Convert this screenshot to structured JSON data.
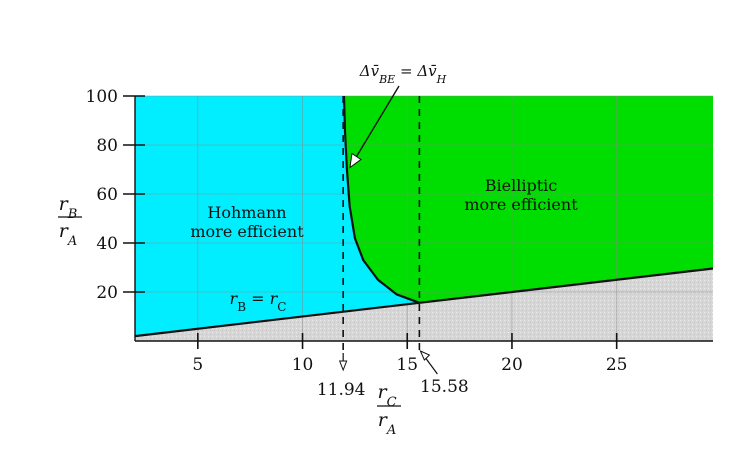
{
  "chart_data": {
    "type": "area",
    "title": "",
    "xlim": [
      2,
      29.6
    ],
    "ylim": [
      0,
      100
    ],
    "x_ticks": [
      5,
      10,
      15,
      20,
      25
    ],
    "y_ticks": [
      20,
      40,
      60,
      80,
      100
    ],
    "xlabel": {
      "num": "r",
      "num_sub": "C",
      "den": "r",
      "den_sub": "A"
    },
    "ylabel": {
      "num": "r",
      "num_sub": "B",
      "den": "r",
      "den_sub": "A"
    },
    "regions": [
      {
        "name_lines": [
          "Hohmann",
          "more efficient"
        ],
        "color": "#00eeff"
      },
      {
        "name_lines": [
          "Bielliptic",
          "more efficient"
        ],
        "color": "#00dd00"
      },
      {
        "name_lines": [],
        "color": "#d8d8d8"
      }
    ],
    "lower_boundary": {
      "label_r": "r",
      "label_sub_B": "B",
      "label_eq": " = ",
      "label_sub_C": "C",
      "x": [
        2,
        29.6
      ],
      "y": [
        2,
        29.6
      ]
    },
    "equal_dv_curve": {
      "label": "Δv̄BE = Δv̄H",
      "label_parts": {
        "lhs": "Δv̄",
        "lhs_sub": "BE",
        "eq": " = ",
        "rhs": "Δv̄",
        "rhs_sub": "H"
      },
      "points": [
        [
          15.58,
          15.58
        ],
        [
          14.5,
          19
        ],
        [
          13.6,
          25
        ],
        [
          12.9,
          33
        ],
        [
          12.5,
          42
        ],
        [
          12.25,
          55
        ],
        [
          12.12,
          70
        ],
        [
          12.03,
          85
        ],
        [
          11.98,
          100
        ]
      ]
    },
    "markers": [
      {
        "label": "11.94",
        "x": 11.94
      },
      {
        "label": "15.58",
        "x": 15.58
      }
    ],
    "grid": true
  }
}
